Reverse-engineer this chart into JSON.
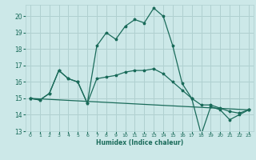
{
  "xlabel": "Humidex (Indice chaleur)",
  "bg_color": "#cce8e8",
  "grid_color": "#b0d0d0",
  "line_color": "#1a6b5a",
  "xlim": [
    -0.5,
    23.5
  ],
  "ylim": [
    13.0,
    20.7
  ],
  "yticks": [
    13,
    14,
    15,
    16,
    17,
    18,
    19,
    20
  ],
  "xticks": [
    0,
    1,
    2,
    3,
    4,
    5,
    6,
    7,
    8,
    9,
    10,
    11,
    12,
    13,
    14,
    15,
    16,
    17,
    18,
    19,
    20,
    21,
    22,
    23
  ],
  "lines": [
    {
      "x": [
        0,
        1,
        2,
        3,
        4,
        5,
        6,
        7,
        8,
        9,
        10,
        11,
        12,
        13,
        14,
        15,
        16,
        17,
        18,
        19,
        20,
        21,
        22,
        23
      ],
      "y": [
        15.0,
        14.9,
        15.3,
        16.7,
        16.2,
        16.0,
        14.7,
        18.2,
        19.0,
        18.6,
        19.4,
        19.8,
        19.6,
        20.5,
        20.0,
        18.2,
        15.9,
        15.0,
        12.8,
        14.5,
        14.3,
        13.7,
        14.0,
        14.3
      ]
    },
    {
      "x": [
        0,
        1,
        2,
        3,
        4,
        5,
        6,
        7,
        8,
        9,
        10,
        11,
        12,
        13,
        14,
        15,
        16,
        17,
        18,
        19,
        20,
        21,
        22,
        23
      ],
      "y": [
        15.0,
        14.9,
        15.3,
        16.7,
        16.2,
        16.0,
        14.7,
        16.2,
        16.3,
        16.4,
        16.6,
        16.7,
        16.7,
        16.8,
        16.5,
        16.0,
        15.5,
        15.0,
        14.6,
        14.6,
        14.4,
        14.2,
        14.1,
        14.3
      ]
    },
    {
      "x": [
        0,
        23
      ],
      "y": [
        15.0,
        14.3
      ]
    }
  ]
}
